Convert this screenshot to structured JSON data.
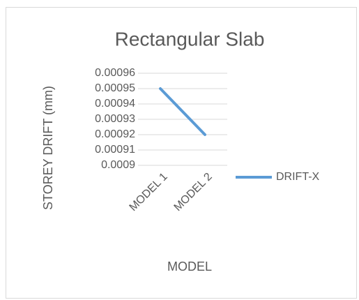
{
  "chart_data": {
    "type": "line",
    "title": "Rectangular Slab",
    "x_label": "MODEL",
    "y_label": "STOREY DRIFT (mm)",
    "categories": [
      "MODEL 1",
      "MODEL 2"
    ],
    "series": [
      {
        "name": "DRIFT-X",
        "color": "#5b9bd5",
        "values": [
          0.00095,
          0.00092
        ]
      }
    ],
    "ylim": [
      0.0009,
      0.00096
    ],
    "yticks": [
      0.0009,
      0.00091,
      0.00092,
      0.00093,
      0.00094,
      0.00095,
      0.00096
    ],
    "grid": true,
    "legend": "right"
  }
}
